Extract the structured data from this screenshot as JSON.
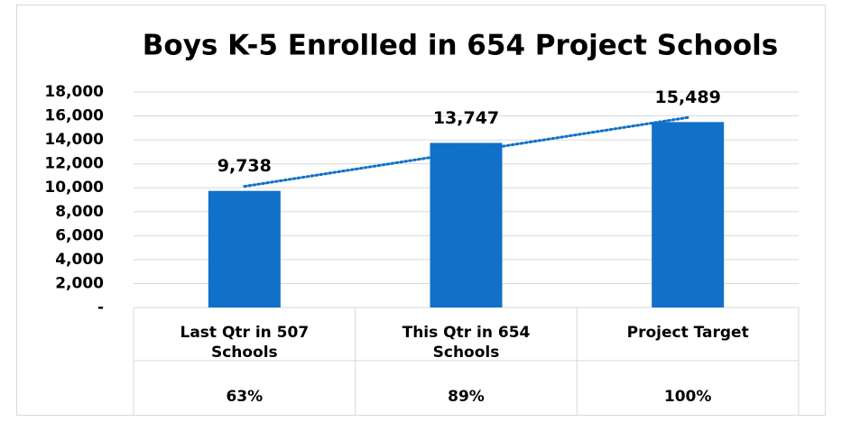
{
  "chart_data": {
    "type": "bar",
    "title": "Boys K-5 Enrolled in 654 Project Schools",
    "categories": [
      "Last Qtr in 507 Schools",
      "This Qtr in 654 Schools",
      "Project Target"
    ],
    "values": [
      9738,
      13747,
      15489
    ],
    "value_labels": [
      "9,738",
      "13,747",
      "15,489"
    ],
    "table_row": [
      "63%",
      "89%",
      "100%"
    ],
    "color": "#1170c8",
    "trendline": {
      "type": "linear",
      "color": "#1170c8",
      "style": "dotted"
    },
    "ylim": [
      0,
      18000
    ],
    "yticks": [
      {
        "value": 0,
        "label": "-"
      },
      {
        "value": 2000,
        "label": "2,000"
      },
      {
        "value": 4000,
        "label": "4,000"
      },
      {
        "value": 6000,
        "label": "6,000"
      },
      {
        "value": 8000,
        "label": "8,000"
      },
      {
        "value": 10000,
        "label": "10,000"
      },
      {
        "value": 12000,
        "label": "12,000"
      },
      {
        "value": 14000,
        "label": "14,000"
      },
      {
        "value": 16000,
        "label": "16,000"
      },
      {
        "value": 18000,
        "label": "18,000"
      }
    ],
    "grid": true
  }
}
